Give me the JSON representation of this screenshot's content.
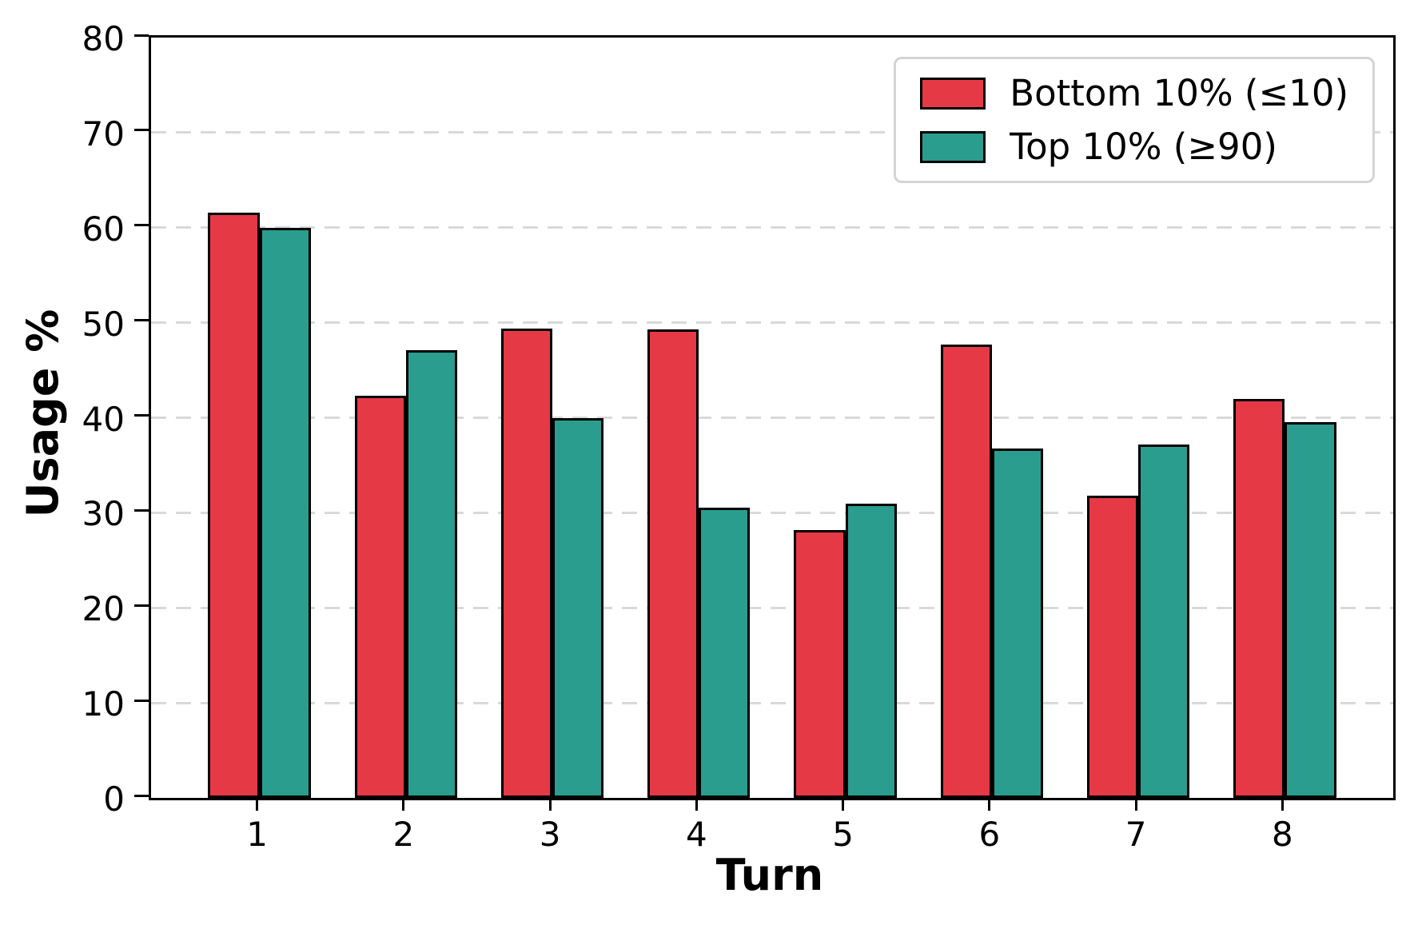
{
  "chart_data": {
    "type": "bar",
    "title": "",
    "xlabel": "Turn",
    "ylabel": "Usage %",
    "categories": [
      "1",
      "2",
      "3",
      "4",
      "5",
      "6",
      "7",
      "8"
    ],
    "series": [
      {
        "name": "Bottom 10% (≤10)",
        "color": "#E63946",
        "values": [
          61.6,
          42.3,
          49.4,
          49.3,
          28.2,
          47.7,
          31.8,
          42.0
        ]
      },
      {
        "name": "Top 10% (≥90)",
        "color": "#2A9D8F",
        "values": [
          60.0,
          47.1,
          40.0,
          30.5,
          31.0,
          36.8,
          37.2,
          39.5
        ]
      }
    ],
    "ylim": [
      0,
      80
    ],
    "yticks": [
      0,
      10,
      20,
      30,
      40,
      50,
      60,
      70,
      80
    ],
    "bar_width_units": 0.35,
    "bar_edge_color": "#000000",
    "grid": "horizontal-dashed",
    "grid_color": "#d9d9d9",
    "legend_position": "upper-right",
    "spines": "full-box"
  }
}
